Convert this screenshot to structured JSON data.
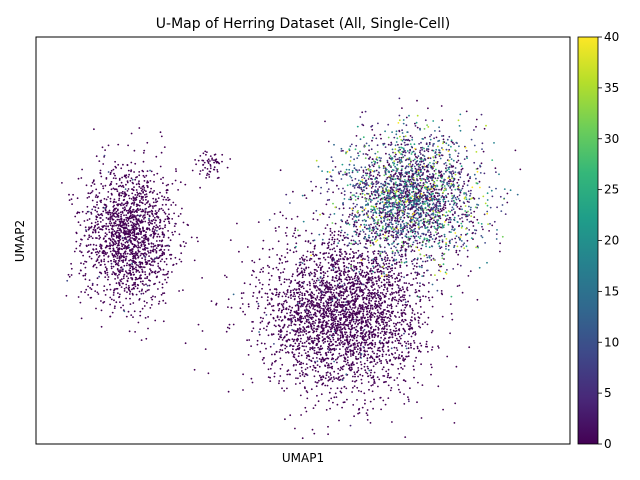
{
  "chart_data": {
    "type": "scatter",
    "title": "U-Map of Herring Dataset (All, Single-Cell)",
    "xlabel": "UMAP1",
    "ylabel": "UMAP2",
    "x_ticks_visible": false,
    "y_ticks_visible": false,
    "grid": false,
    "colormap": "viridis",
    "colorbar": {
      "position": "right",
      "range": [
        0,
        40
      ],
      "ticks": [
        0,
        5,
        10,
        15,
        20,
        25,
        30,
        35,
        40
      ]
    },
    "clusters": [
      {
        "name_hint": "left-island",
        "center": [
          -6.5,
          4.2
        ],
        "spread": [
          1.6,
          2.2
        ],
        "value_mean": 0.4
      },
      {
        "name_hint": "thin-tail",
        "center": [
          -3.4,
          6.6
        ],
        "spread": [
          0.6,
          0.4
        ],
        "value_mean": 2
      },
      {
        "name_hint": "main-body-lower",
        "center": [
          1.5,
          1.5
        ],
        "spread": [
          2.8,
          2.4
        ],
        "value_mean": 1
      },
      {
        "name_hint": "main-body-upper-right",
        "center": [
          4.0,
          5.5
        ],
        "spread": [
          2.4,
          2.0
        ],
        "value_mean": 14
      }
    ],
    "x_range": [
      -10,
      10
    ],
    "y_range": [
      -3,
      11
    ]
  },
  "colors": {
    "viridis": [
      "#440154",
      "#482878",
      "#3e4989",
      "#31688e",
      "#26828e",
      "#1f9e89",
      "#35b779",
      "#6ece58",
      "#b5de2b",
      "#fde725"
    ]
  }
}
